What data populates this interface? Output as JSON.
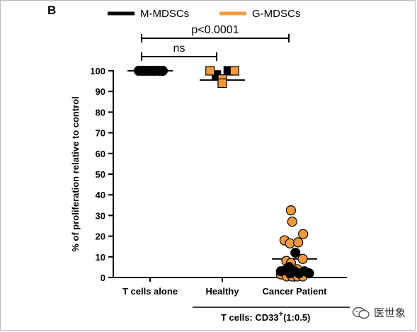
{
  "panel_label": "B",
  "watermark": {
    "text": "医世象",
    "icon": "chat-bubbles-icon"
  },
  "colors": {
    "m_mdsc": "#000000",
    "g_mdsc": "#f29a3f",
    "axis": "#000000"
  },
  "chart_data": {
    "type": "scatter",
    "ylabel": "% of proliferation relative to control",
    "ylim": [
      0,
      100
    ],
    "yticks": [
      0,
      10,
      20,
      30,
      40,
      50,
      60,
      70,
      80,
      90,
      100
    ],
    "categories": [
      "T cells alone",
      "Healthy",
      "Cancer Patient"
    ],
    "bracket_label": "T cells: CD33",
    "bracket_superscript": "+",
    "bracket_suffix": "(1:0.5)",
    "legend": [
      {
        "name": "M-MDSCs",
        "color": "#000000"
      },
      {
        "name": "G-MDSCs",
        "color": "#f29a3f"
      }
    ],
    "series": [
      {
        "category": "T cells alone",
        "marker": "circle",
        "color": "#000000",
        "points": [
          {
            "x": -0.25,
            "y": 100
          },
          {
            "x": -0.17,
            "y": 100
          },
          {
            "x": -0.09,
            "y": 100
          },
          {
            "x": -0.02,
            "y": 100
          },
          {
            "x": 0.05,
            "y": 100
          },
          {
            "x": 0.12,
            "y": 100
          },
          {
            "x": 0.2,
            "y": 100
          },
          {
            "x": 0.28,
            "y": 100
          }
        ]
      },
      {
        "category": "Healthy",
        "marker": "square",
        "color": "#000000",
        "points": [
          {
            "x": -0.13,
            "y": 98
          },
          {
            "x": 0.13,
            "y": 100
          }
        ]
      },
      {
        "category": "Healthy",
        "marker": "square",
        "color": "#f29a3f",
        "points": [
          {
            "x": -0.27,
            "y": 100
          },
          {
            "x": 0.0,
            "y": 96
          },
          {
            "x": 0.0,
            "y": 94
          },
          {
            "x": 0.27,
            "y": 100
          }
        ]
      },
      {
        "category": "Cancer Patient",
        "marker": "circle",
        "color": "#f29a3f",
        "points": [
          {
            "x": -0.08,
            "y": 32.5
          },
          {
            "x": -0.05,
            "y": 27
          },
          {
            "x": 0.19,
            "y": 21
          },
          {
            "x": -0.22,
            "y": 18
          },
          {
            "x": -0.1,
            "y": 16.5
          },
          {
            "x": 0.08,
            "y": 17
          },
          {
            "x": 0.18,
            "y": 9
          },
          {
            "x": -0.18,
            "y": 8
          },
          {
            "x": -0.3,
            "y": 1.5
          },
          {
            "x": -0.17,
            "y": 0.5
          },
          {
            "x": -0.05,
            "y": 0.5
          },
          {
            "x": 0.07,
            "y": 0.5
          },
          {
            "x": 0.18,
            "y": 0.5
          },
          {
            "x": -0.08,
            "y": 7
          },
          {
            "x": 0.06,
            "y": 4
          }
        ]
      },
      {
        "category": "Cancer Patient",
        "marker": "circle",
        "color": "#000000",
        "points": [
          {
            "x": 0.02,
            "y": 12
          },
          {
            "x": -0.3,
            "y": 3
          },
          {
            "x": -0.2,
            "y": 3.5
          },
          {
            "x": -0.1,
            "y": 2
          },
          {
            "x": 0.0,
            "y": 3
          },
          {
            "x": 0.1,
            "y": 2
          },
          {
            "x": 0.22,
            "y": 3
          },
          {
            "x": 0.32,
            "y": 2
          },
          {
            "x": -0.12,
            "y": 5
          }
        ]
      }
    ],
    "means": [
      {
        "category": "T cells alone",
        "y": 100
      },
      {
        "category": "Healthy",
        "y": 95.5
      },
      {
        "category": "Cancer Patient",
        "y": 9
      }
    ],
    "comparisons": [
      {
        "from": "T cells alone",
        "to": "Healthy",
        "label": "ns"
      },
      {
        "from": "T cells alone",
        "to": "Cancer Patient",
        "label": "p<0.0001"
      }
    ]
  }
}
